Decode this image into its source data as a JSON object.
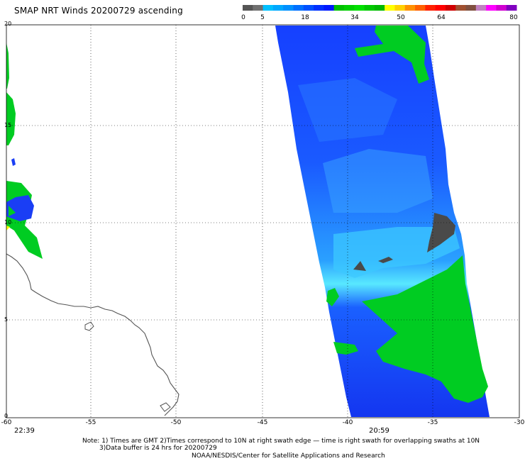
{
  "title": "SMAP NRT Winds 20200729 ascending",
  "colorbar": {
    "labels": [
      "0",
      "5",
      "18",
      "34",
      "50",
      "64",
      "80"
    ],
    "colors": [
      "#555555",
      "#707070",
      "#00c0ff",
      "#00a8ff",
      "#0090ff",
      "#0070ff",
      "#0050ff",
      "#0030ff",
      "#0018ff",
      "#00c000",
      "#00d000",
      "#00e000",
      "#00c800",
      "#00b800",
      "#ffff00",
      "#ffd000",
      "#ff9000",
      "#ff6000",
      "#ff2000",
      "#ff0000",
      "#d00000",
      "#a05030",
      "#805040",
      "#c080c0",
      "#ff00ff",
      "#d000d0",
      "#8000c0"
    ]
  },
  "map": {
    "lon_ticks": [
      "-60",
      "-55",
      "-50",
      "-45",
      "-40",
      "-35",
      "-30"
    ],
    "lat_ticks": [
      "20",
      "15",
      "10",
      "5",
      "0"
    ]
  },
  "times": {
    "left": "22:39",
    "right": "20:59"
  },
  "notes": {
    "line1": "Note: 1) Times are GMT 2)Times correspond to 10N at right swath edge — time is right swath for overlapping swaths at 10N",
    "line2": "3)Data buffer is 24 hrs for 20200729",
    "line3": "NOAA/NESDIS/Center for Satellite Applications and Research"
  }
}
